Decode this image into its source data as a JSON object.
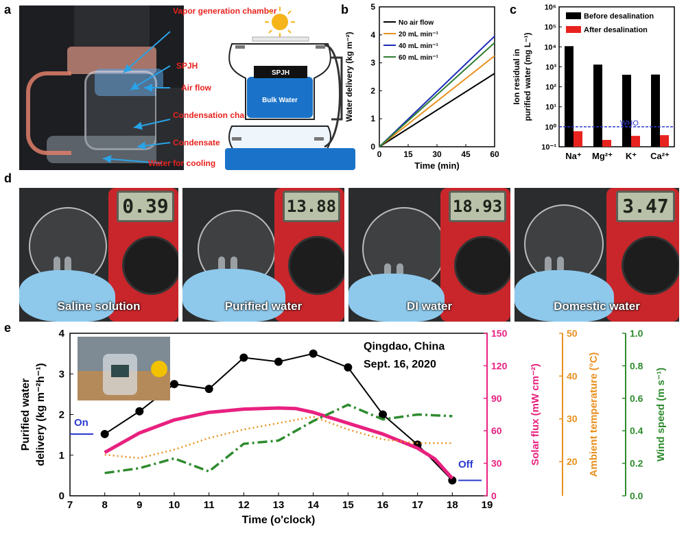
{
  "panels": {
    "a": {
      "letter": "a",
      "labels": [
        "Vapor generation chamber",
        "SPJH",
        "Air flow",
        "Condensation chamber",
        "Condensate",
        "Water for cooling"
      ],
      "schematic": {
        "top_label": "SPJH",
        "water_label": "Bulk Water"
      }
    },
    "b": {
      "letter": "b"
    },
    "c": {
      "letter": "c"
    },
    "d": {
      "letter": "d",
      "photos": [
        {
          "caption": "Saline solution",
          "reading": "0.39"
        },
        {
          "caption": "Purified water",
          "reading": "13.88"
        },
        {
          "caption": "DI water",
          "reading": "18.93"
        },
        {
          "caption": "Domestic water",
          "reading": "3.47"
        }
      ]
    },
    "e": {
      "letter": "e"
    }
  },
  "chart_data": [
    {
      "id": "b",
      "type": "line",
      "title": "",
      "xlabel": "Time (min)",
      "ylabel": "Water delivery (kg m⁻²)",
      "xlim": [
        0,
        60
      ],
      "ylim": [
        0,
        5
      ],
      "xticks": [
        0,
        15,
        30,
        45,
        60
      ],
      "yticks": [
        0,
        1,
        2,
        3,
        4,
        5
      ],
      "legend_position": "top-left",
      "x": [
        0,
        60
      ],
      "series": [
        {
          "name": "No air flow",
          "color": "#000000",
          "values": [
            0,
            2.62
          ]
        },
        {
          "name": "20 mL min⁻¹",
          "color": "#e8901e",
          "values": [
            0,
            3.25
          ]
        },
        {
          "name": "40 mL min⁻¹",
          "color": "#1a2ab8",
          "values": [
            0,
            3.95
          ]
        },
        {
          "name": "60 mL min⁻¹",
          "color": "#2e7d32",
          "values": [
            0,
            3.72
          ]
        }
      ]
    },
    {
      "id": "c",
      "type": "bar",
      "scale": "log",
      "title": "",
      "xlabel": "",
      "ylabel": "Ion residual in purified water (mg L⁻¹)",
      "ylim": [
        0.1,
        1000000
      ],
      "ytick_labels": [
        "10⁻¹",
        "10⁰",
        "10¹",
        "10²",
        "10³",
        "10⁴",
        "10⁵",
        "10⁶"
      ],
      "categories": [
        "Na⁺",
        "Mg²⁺",
        "K⁺",
        "Ca²⁺"
      ],
      "legend_position": "top-right",
      "series": [
        {
          "name": "Before desalination",
          "color": "#000000",
          "values": [
            10800,
            1290,
            400,
            410
          ]
        },
        {
          "name": "After desalination",
          "color": "#e8221e",
          "values": [
            0.6,
            0.22,
            0.35,
            0.38
          ]
        }
      ],
      "reference_line": {
        "label": "WHO",
        "value": 1.0,
        "color": "#2a3ad0"
      }
    },
    {
      "id": "e",
      "type": "line",
      "title": "",
      "xlabel": "Time (o'clock)",
      "xlim": [
        7,
        19
      ],
      "xticks": [
        7,
        8,
        9,
        10,
        11,
        12,
        13,
        14,
        15,
        16,
        17,
        18,
        19
      ],
      "annotations": {
        "location": "Qingdao, China",
        "date": "Sept. 16, 2020",
        "on": "On",
        "off": "Off"
      },
      "axes": [
        {
          "name": "Purified water delivery (kg m⁻²h⁻¹)",
          "color": "#000000",
          "ylim": [
            0,
            4
          ],
          "yticks": [
            0,
            1,
            2,
            3,
            4
          ]
        },
        {
          "name": "Solar flux (mW cm⁻²)",
          "color": "#e8217f",
          "ylim": [
            0,
            150
          ],
          "yticks": [
            0,
            30,
            60,
            90,
            120,
            150
          ]
        },
        {
          "name": "Ambient temperature (°C)",
          "color": "#e8901e",
          "ylim": [
            12,
            50
          ],
          "yticks": [
            20,
            30,
            40,
            50
          ]
        },
        {
          "name": "Wind speed (m s⁻¹)",
          "color": "#2e8b2e",
          "ylim": [
            0,
            1.0
          ],
          "yticks": [
            0.0,
            0.2,
            0.4,
            0.6,
            0.8,
            1.0
          ]
        }
      ],
      "series": [
        {
          "name": "Purified water delivery",
          "axis": 0,
          "color": "#000000",
          "style": "solid-markers",
          "x": [
            8,
            9,
            10,
            11,
            12,
            13,
            14,
            15,
            16,
            17,
            18
          ],
          "values": [
            1.52,
            2.08,
            2.75,
            2.63,
            3.4,
            3.3,
            3.5,
            3.16,
            2.0,
            1.26,
            0.38
          ]
        },
        {
          "name": "Solar flux",
          "axis": 1,
          "color": "#e8217f",
          "style": "thick",
          "x": [
            8,
            9,
            10,
            11,
            12,
            13,
            13.5,
            14,
            15,
            16,
            17,
            17.5,
            18
          ],
          "values": [
            40,
            58,
            70,
            77,
            80,
            81,
            80.5,
            77,
            67,
            57,
            44,
            34,
            16
          ]
        },
        {
          "name": "Ambient temperature",
          "axis": 2,
          "color": "#e8901e",
          "style": "dotted",
          "x": [
            8,
            9,
            10,
            11,
            12,
            13,
            14,
            15,
            16,
            17,
            18
          ],
          "values": [
            21.6,
            20.8,
            22.8,
            25.5,
            27.5,
            29.0,
            30.5,
            27.5,
            25.2,
            24.3,
            24.3
          ]
        },
        {
          "name": "Wind speed",
          "axis": 3,
          "color": "#2e8b2e",
          "style": "dashdot",
          "x": [
            8,
            9,
            10,
            11,
            12,
            13,
            14,
            15,
            16,
            17,
            18
          ],
          "values": [
            0.14,
            0.17,
            0.23,
            0.15,
            0.32,
            0.34,
            0.46,
            0.56,
            0.47,
            0.5,
            0.49
          ]
        }
      ]
    }
  ]
}
